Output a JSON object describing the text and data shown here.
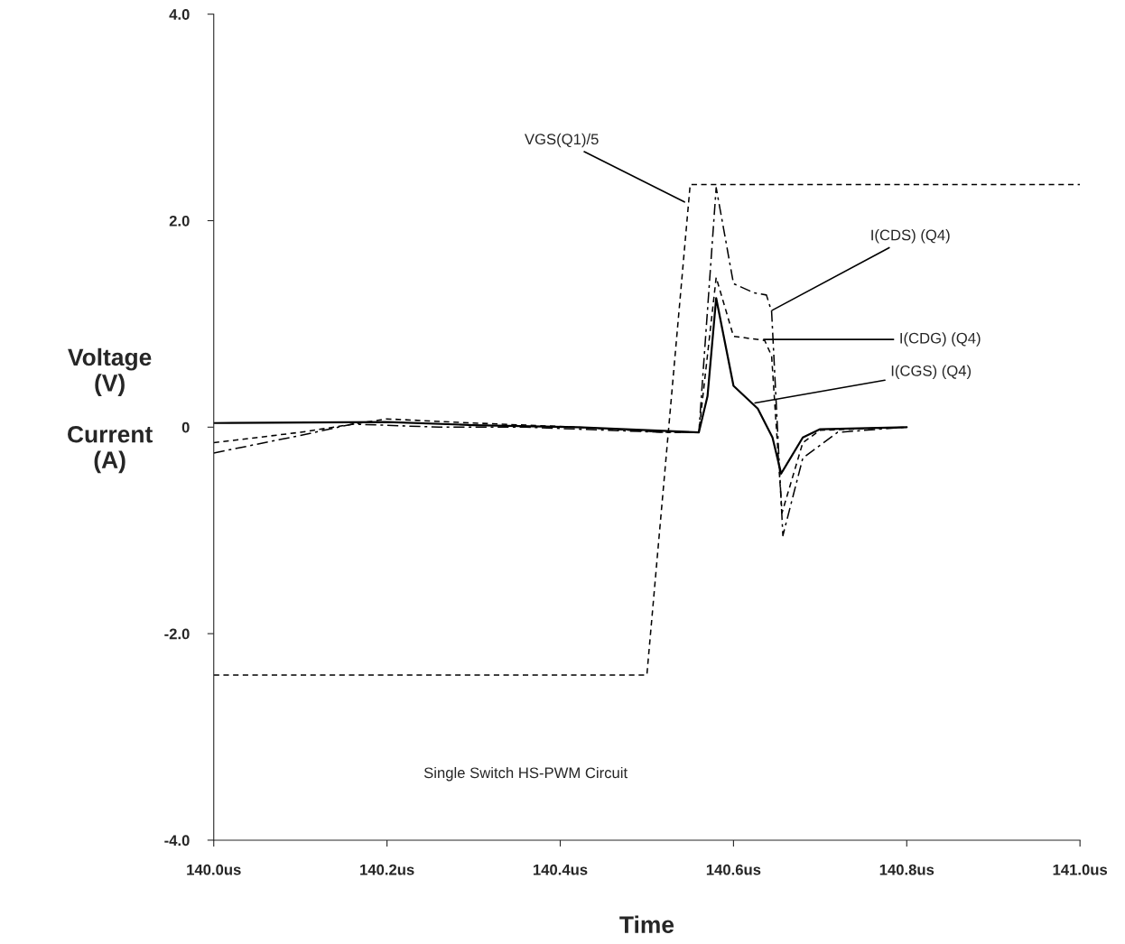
{
  "chart_data": {
    "type": "line",
    "xlabel": "Time",
    "ylabel": "Voltage\n(V)\n\nCurrent\n(A)",
    "xlim": [
      140.0,
      141.0
    ],
    "ylim": [
      -4.0,
      4.0
    ],
    "xticks": [
      {
        "value": 140.0,
        "label": "140.0us"
      },
      {
        "value": 140.2,
        "label": "140.2us"
      },
      {
        "value": 140.4,
        "label": "140.4us"
      },
      {
        "value": 140.6,
        "label": "140.6us"
      },
      {
        "value": 140.8,
        "label": "140.8us"
      },
      {
        "value": 141.0,
        "label": "141.0us"
      }
    ],
    "yticks": [
      {
        "value": -4.0,
        "label": "-4.0"
      },
      {
        "value": -2.0,
        "label": "-2.0"
      },
      0,
      {
        "value": 2.0,
        "label": "2.0"
      },
      {
        "value": 4.0,
        "label": "4.0"
      }
    ],
    "grid": false,
    "legend": false,
    "marker": "none",
    "series": [
      {
        "color": "#000000",
        "line_style": "dashed",
        "x": [
          140.0,
          140.5,
          140.55,
          141.0
        ],
        "values": [
          -2.4,
          -2.4,
          2.35,
          2.35
        ]
      },
      {
        "color": "#000000",
        "line_style": "dashdot",
        "x": [
          140.0,
          140.1,
          140.16,
          140.26,
          140.36,
          140.52,
          140.56,
          140.58,
          140.6,
          140.624,
          140.638,
          140.644,
          140.657,
          140.68,
          140.72,
          140.8
        ],
        "values": [
          -0.25,
          -0.08,
          0.03,
          0.0,
          0.0,
          -0.05,
          -0.05,
          2.32,
          1.39,
          1.3,
          1.28,
          1.12,
          -1.05,
          -0.3,
          -0.05,
          0.0
        ]
      },
      {
        "color": "#000000",
        "line_style": "dashed",
        "x": [
          140.0,
          140.1,
          140.2,
          140.3,
          140.42,
          140.52,
          140.56,
          140.58,
          140.6,
          140.636,
          140.644,
          140.656,
          140.68,
          140.7,
          140.8
        ],
        "values": [
          -0.15,
          -0.05,
          0.08,
          0.04,
          0.0,
          -0.05,
          -0.05,
          1.45,
          0.88,
          0.84,
          0.69,
          -0.83,
          -0.15,
          -0.03,
          0.0
        ]
      },
      {
        "color": "#000000",
        "line_style": "solid",
        "x": [
          140.0,
          140.2,
          140.3,
          140.42,
          140.56,
          140.57,
          140.58,
          140.6,
          140.628,
          140.645,
          140.655,
          140.68,
          140.7,
          140.8
        ],
        "values": [
          0.04,
          0.05,
          0.02,
          0.0,
          -0.05,
          0.3,
          1.25,
          0.4,
          0.18,
          -0.1,
          -0.45,
          -0.1,
          -0.02,
          0.0
        ]
      }
    ],
    "annotations": [
      {
        "text": "VGS(Q1)/5",
        "x": 140.546,
        "y": 2.17
      },
      {
        "text": "I(CDS) (Q4)",
        "x": 140.642,
        "y": 1.12
      },
      {
        "text": "I(CDG) (Q4)",
        "x": 140.632,
        "y": 0.85
      },
      {
        "text": "I(CGS) (Q4)",
        "x": 140.622,
        "y": 0.23
      },
      "Single Switch HS-PWM Circuit"
    ]
  }
}
